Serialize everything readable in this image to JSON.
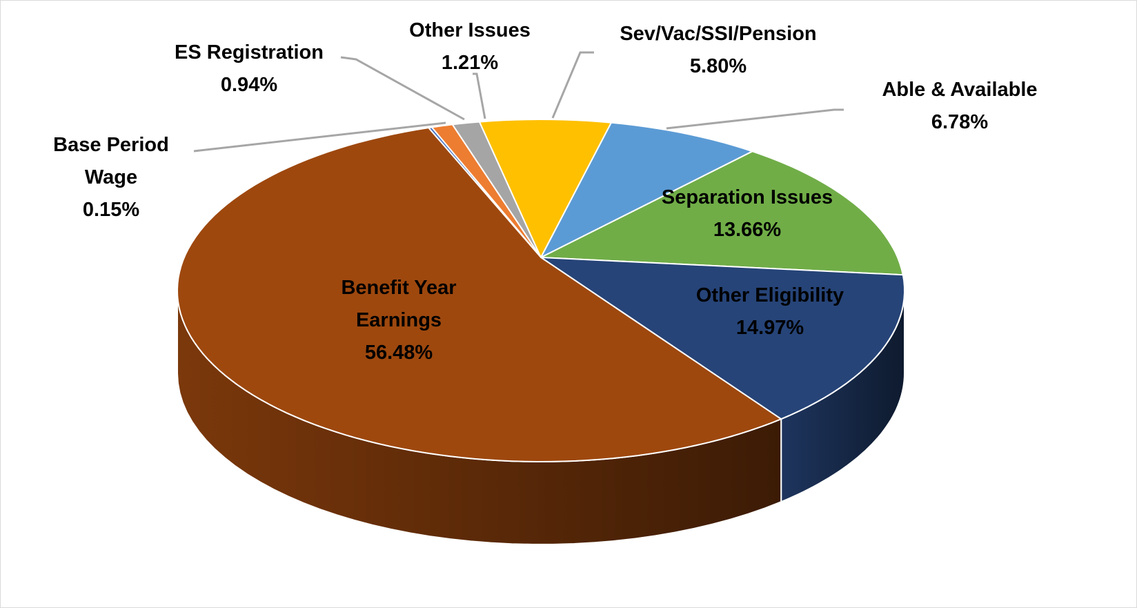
{
  "chart_data": {
    "type": "pie",
    "style": "3d",
    "title": "",
    "slices": [
      {
        "label": "Base Period Wage",
        "value": 0.15,
        "display": "0.15%",
        "color": "#4472C4"
      },
      {
        "label": "ES Registration",
        "value": 0.94,
        "display": "0.94%",
        "color": "#ED7D31"
      },
      {
        "label": "Other Issues",
        "value": 1.21,
        "display": "1.21%",
        "color": "#A5A5A5"
      },
      {
        "label": "Sev/Vac/SSI/Pension",
        "value": 5.8,
        "display": "5.80%",
        "color": "#FFC000"
      },
      {
        "label": "Able & Available",
        "value": 6.78,
        "display": "6.78%",
        "color": "#5B9BD5"
      },
      {
        "label": "Separation Issues",
        "value": 13.66,
        "display": "13.66%",
        "color": "#70AD47"
      },
      {
        "label": "Other Eligibility",
        "value": 14.97,
        "display": "14.97%",
        "color": "#264478"
      },
      {
        "label": "Benefit Year Earnings",
        "value": 56.48,
        "display": "56.48%",
        "color": "#9E480E"
      }
    ],
    "label_lines": [
      "Base",
      "Period",
      "Wage",
      "Benefit Year",
      "Earnings"
    ]
  }
}
